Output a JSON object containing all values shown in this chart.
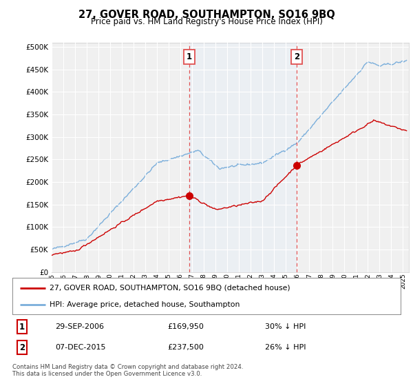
{
  "title": "27, GOVER ROAD, SOUTHAMPTON, SO16 9BQ",
  "subtitle": "Price paid vs. HM Land Registry's House Price Index (HPI)",
  "ylabel_ticks": [
    "£0",
    "£50K",
    "£100K",
    "£150K",
    "£200K",
    "£250K",
    "£300K",
    "£350K",
    "£400K",
    "£450K",
    "£500K"
  ],
  "ytick_values": [
    0,
    50000,
    100000,
    150000,
    200000,
    250000,
    300000,
    350000,
    400000,
    450000,
    500000
  ],
  "xlim": [
    1995.0,
    2025.5
  ],
  "ylim": [
    0,
    510000
  ],
  "xtick_years": [
    1995,
    1996,
    1997,
    1998,
    1999,
    2000,
    2001,
    2002,
    2003,
    2004,
    2005,
    2006,
    2007,
    2008,
    2009,
    2010,
    2011,
    2012,
    2013,
    2014,
    2015,
    2016,
    2017,
    2018,
    2019,
    2020,
    2021,
    2022,
    2023,
    2024,
    2025
  ],
  "transaction1": {
    "date": "29-SEP-2006",
    "price": 169950,
    "year": 2006.75,
    "label": "1",
    "hpi_pct": "30% ↓ HPI"
  },
  "transaction2": {
    "date": "07-DEC-2015",
    "price": 237500,
    "year": 2015.92,
    "label": "2",
    "hpi_pct": "26% ↓ HPI"
  },
  "legend_line1": "27, GOVER ROAD, SOUTHAMPTON, SO16 9BQ (detached house)",
  "legend_line2": "HPI: Average price, detached house, Southampton",
  "footer": "Contains HM Land Registry data © Crown copyright and database right 2024.\nThis data is licensed under the Open Government Licence v3.0.",
  "red_color": "#cc0000",
  "blue_color": "#7aaedb",
  "vline_color": "#e05050",
  "fill_color": "#ddeeff",
  "background_color": "#ffffff",
  "plot_bg_color": "#f0f0f0"
}
